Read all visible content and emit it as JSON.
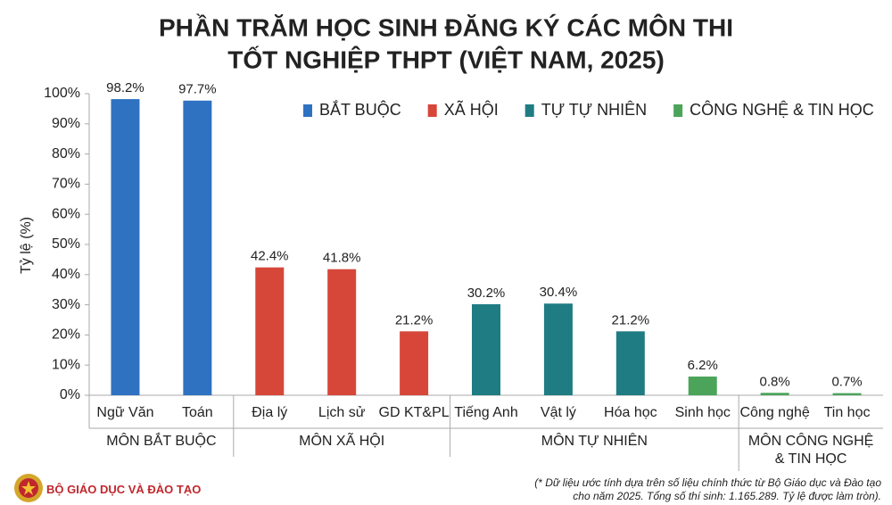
{
  "chart_data": {
    "type": "bar",
    "title": "PHẦN TRĂM HỌC SINH ĐĂNG KÝ CÁC MÔN THI",
    "subtitle": "TỐT NGHIỆP THPT (VIỆT NAM, 2025)",
    "y_label": "Tỷ lệ (%)",
    "ylim": [
      0,
      100
    ],
    "yticks": [
      {
        "value": 0,
        "label": "0%"
      },
      {
        "value": 10,
        "label": "10%"
      },
      {
        "value": 20,
        "label": "20%"
      },
      {
        "value": 30,
        "label": "30%"
      },
      {
        "value": 40,
        "label": "40%"
      },
      {
        "value": 50,
        "label": "50%"
      },
      {
        "value": 60,
        "label": "60%"
      },
      {
        "value": 70,
        "label": "70%"
      },
      {
        "value": 80,
        "label": "80%"
      },
      {
        "value": 90,
        "label": "90%"
      },
      {
        "value": 100,
        "label": "100%"
      }
    ],
    "legend_position": "top-right",
    "legend": [
      {
        "name": "BẮT BUỘC",
        "color": "#2f72c1"
      },
      {
        "name": "XÃ HỘI",
        "color": "#d6473a"
      },
      {
        "name": "TỰ TỰ NHIÊN",
        "color": "#1f7c83"
      },
      {
        "name": "CÔNG NGHỆ & TIN HỌC",
        "color": "#4ba45a"
      }
    ],
    "groups": [
      {
        "label": "MÔN BẮT BUỘC",
        "categories": [
          "Ngữ Văn",
          "Toán"
        ],
        "values": [
          98.2,
          97.7
        ],
        "value_labels": [
          "98.2%",
          "97.7%"
        ],
        "colors": [
          "#2f72c1",
          "#2f72c1"
        ]
      },
      {
        "label": "MÔN XÃ HỘI",
        "categories": [
          "Địa lý",
          "Lịch sử",
          "GD KT&PL"
        ],
        "values": [
          42.4,
          41.8,
          21.2
        ],
        "value_labels": [
          "42.4%",
          "41.8%",
          "21.2%"
        ],
        "colors": [
          "#d6473a",
          "#d6473a",
          "#d6473a"
        ]
      },
      {
        "label": "MÔN TỰ NHIÊN",
        "categories": [
          "Tiếng Anh",
          "Vật lý",
          "Hóa học",
          "Sinh học"
        ],
        "values": [
          30.2,
          30.4,
          21.2,
          6.2
        ],
        "value_labels": [
          "30.2%",
          "30.4%",
          "21.2%",
          "6.2%"
        ],
        "colors": [
          "#1f7c83",
          "#1f7c83",
          "#1f7c83",
          "#4ba45a"
        ]
      },
      {
        "label": "MÔN CÔNG NGHỆ\n& TIN HỌC",
        "categories": [
          "Công nghệ",
          "Tin học"
        ],
        "values": [
          0.8,
          0.7
        ],
        "value_labels": [
          "0.8%",
          "0.7%"
        ],
        "colors": [
          "#4ba45a",
          "#4ba45a"
        ]
      }
    ],
    "source": "BỘ GIÁO DỤC VÀ ĐÀO TẠO",
    "footnote": "(* Dữ liệu ước tính dựa trên số liệu chính thức từ Bộ Giáo dục và Đào tạo\ncho năm 2025. Tổng số thí sinh: 1.165.289. Tỷ lệ được làm tròn)."
  }
}
